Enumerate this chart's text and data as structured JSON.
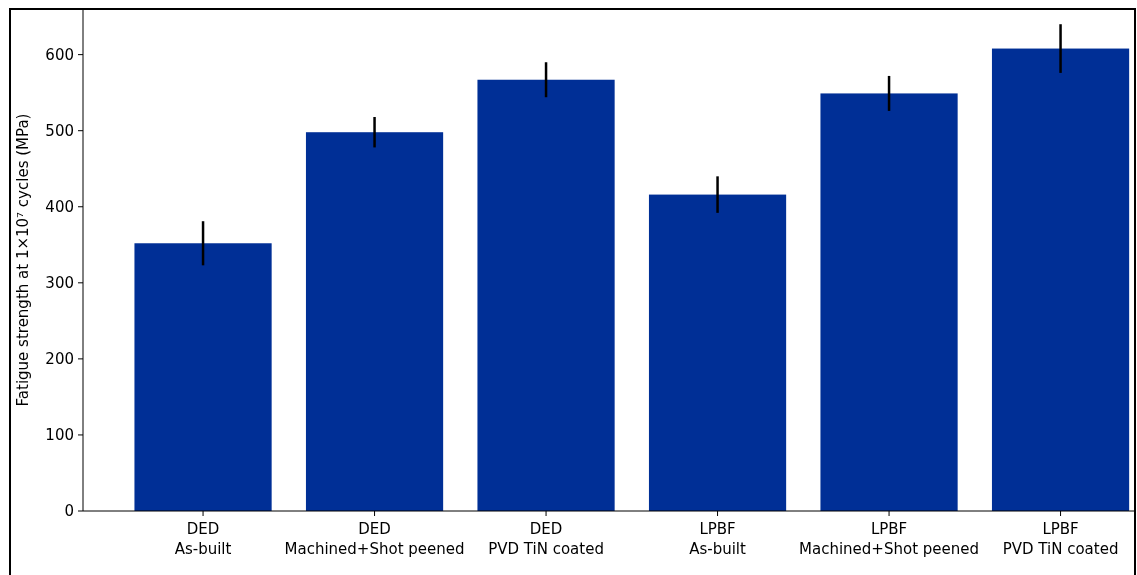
{
  "chart_data": {
    "type": "bar",
    "ylabel": "Fatigue strength at 1×10⁷ cycles (MPa)",
    "categories": [
      "DED\nAs-built",
      "DED\nMachined+Shot peened",
      "DED\nPVD TiN coated",
      "LPBF\nAs-built",
      "LPBF\nMachined+Shot peened",
      "LPBF\nPVD TiN coated"
    ],
    "values": [
      352,
      498,
      567,
      416,
      549,
      608
    ],
    "errors": [
      29,
      20,
      23,
      24,
      23,
      32
    ],
    "color": "#002f96",
    "ylim": [
      0,
      660
    ],
    "yticks": [
      0,
      100,
      200,
      300,
      400,
      500,
      600
    ],
    "grid": false
  }
}
